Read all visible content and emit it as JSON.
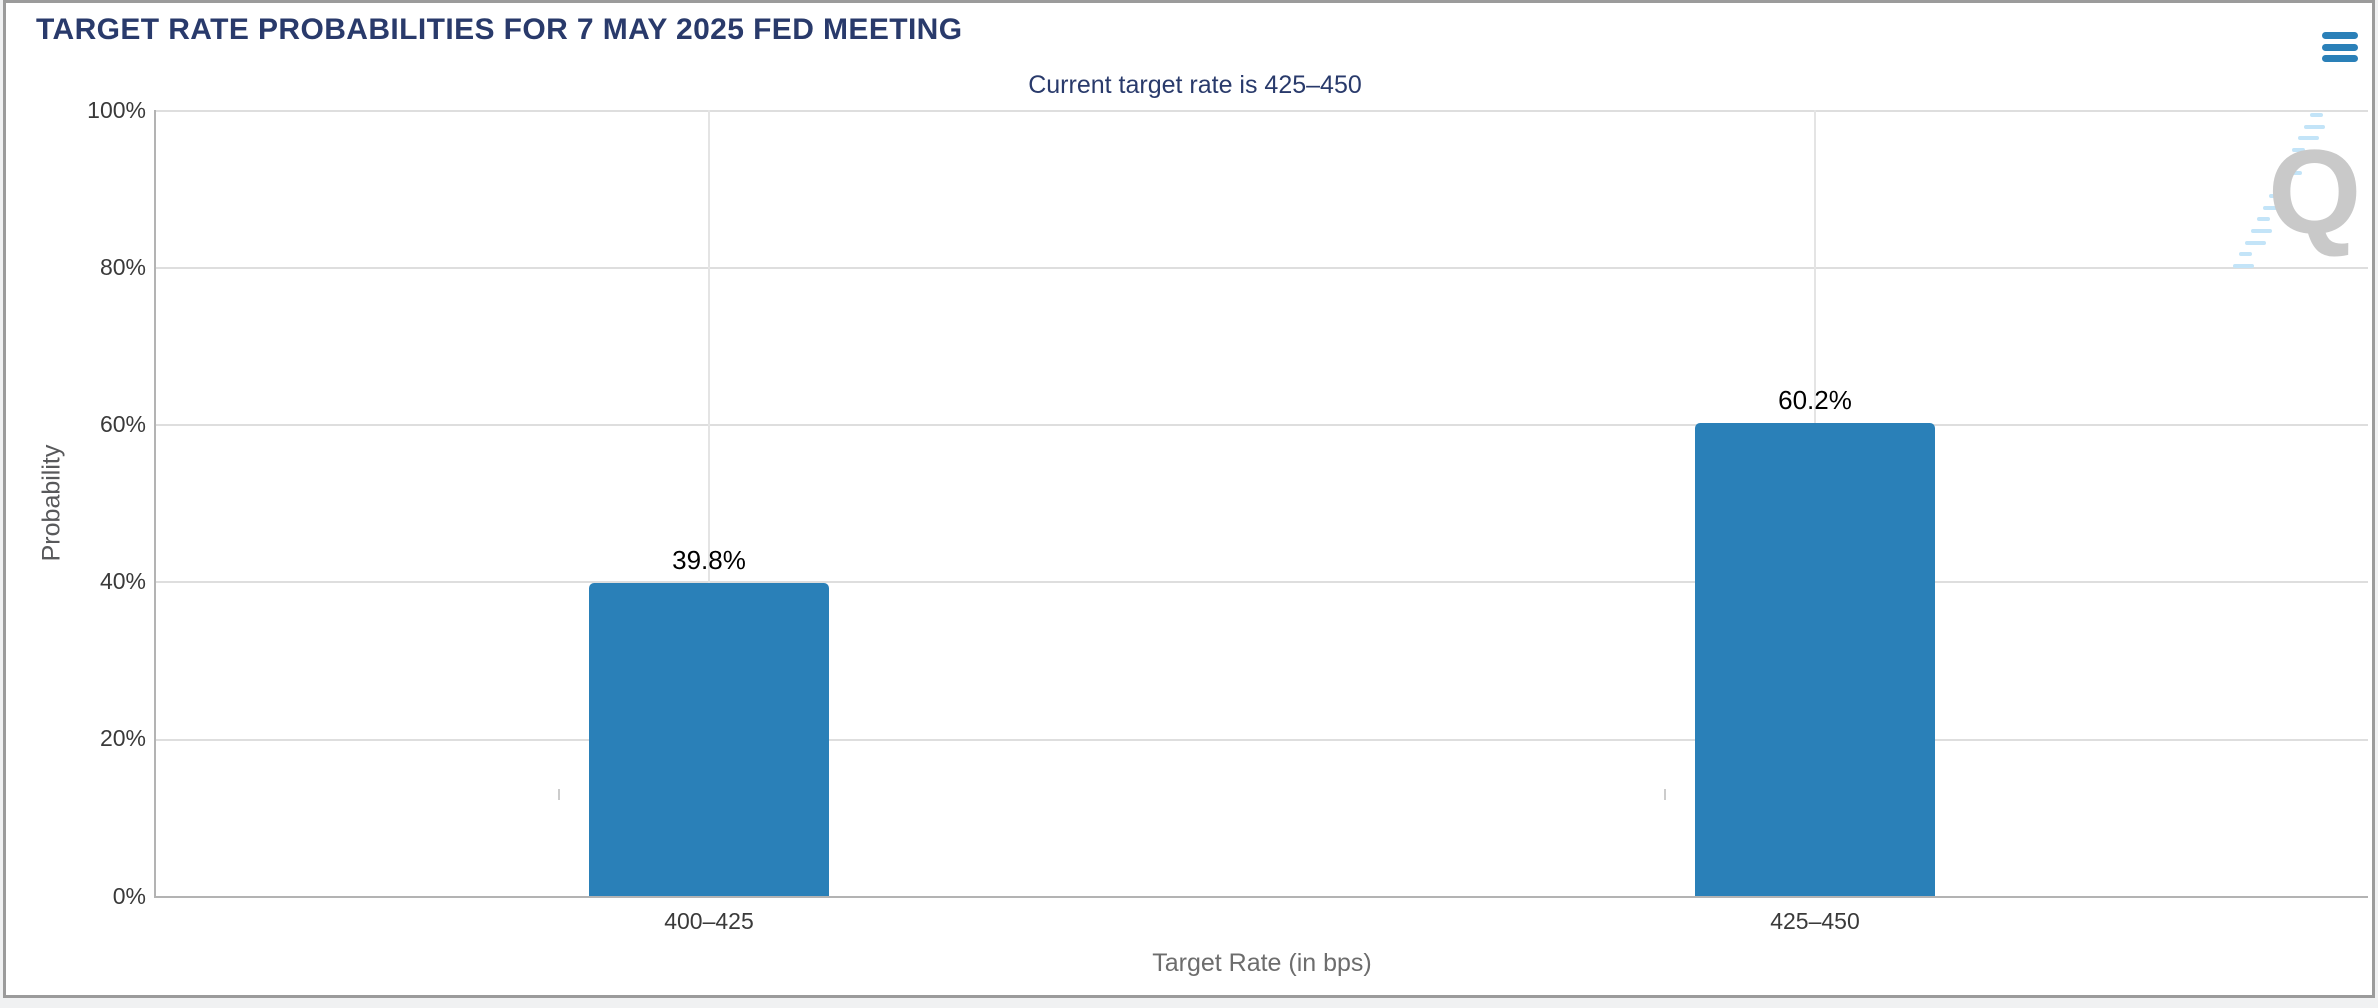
{
  "header": {
    "menu_tooltip": "Chart context menu"
  },
  "chart_data": {
    "type": "bar",
    "title": "TARGET RATE PROBABILITIES FOR 7 MAY 2025 FED MEETING",
    "subtitle": "Current target rate is 425–450",
    "categories": [
      "400–425",
      "425–450"
    ],
    "values": [
      39.8,
      60.2
    ],
    "value_labels": [
      "39.8%",
      "60.2%"
    ],
    "xlabel": "Target Rate (in bps)",
    "ylabel": "Probability",
    "ylim": [
      0,
      100
    ],
    "ytick_labels": [
      "100%",
      "80%",
      "60%",
      "40%",
      "20%",
      "0%"
    ],
    "grid": true,
    "legend": "none",
    "bar_color": "#2a80b8",
    "title_color": "#293a6b",
    "watermark_letter": "Q"
  }
}
